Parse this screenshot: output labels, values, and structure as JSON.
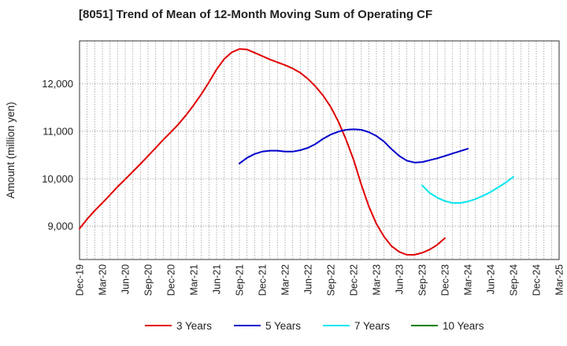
{
  "chart_data": {
    "type": "line",
    "title": "[8051]  Trend of Mean of 12-Month Moving Sum of Operating CF",
    "xlabel": "",
    "ylabel": "Amount (million yen)",
    "ylim": [
      8300,
      12900
    ],
    "yticks": [
      9000,
      10000,
      11000,
      12000
    ],
    "ytick_labels": [
      "9,000",
      "10,000",
      "11,000",
      "12,000"
    ],
    "x_tick_labels": [
      "Dec-19",
      "Mar-20",
      "Jun-20",
      "Sep-20",
      "Dec-20",
      "Mar-21",
      "Jun-21",
      "Sep-21",
      "Dec-21",
      "Mar-22",
      "Jun-22",
      "Sep-22",
      "Dec-22",
      "Mar-23",
      "Jun-23",
      "Sep-23",
      "Dec-23",
      "Mar-24",
      "Jun-24",
      "Sep-24",
      "Dec-24",
      "Mar-25"
    ],
    "x_tick_index": [
      0,
      3,
      6,
      9,
      12,
      15,
      18,
      21,
      24,
      27,
      30,
      33,
      36,
      39,
      42,
      45,
      48,
      51,
      54,
      57,
      60,
      63
    ],
    "x_range": [
      0,
      63
    ],
    "grid": true,
    "legend_position": "bottom",
    "series": [
      {
        "name": "3 Years",
        "color": "#e00000",
        "x_start": 0,
        "values": [
          8950,
          9150,
          9330,
          9490,
          9660,
          9830,
          9990,
          10150,
          10310,
          10480,
          10650,
          10820,
          10980,
          11150,
          11340,
          11550,
          11780,
          12030,
          12300,
          12520,
          12660,
          12730,
          12720,
          12650,
          12580,
          12510,
          12450,
          12390,
          12320,
          12230,
          12100,
          11940,
          11750,
          11510,
          11200,
          10830,
          10400,
          9880,
          9420,
          9050,
          8780,
          8580,
          8460,
          8400,
          8400,
          8440,
          8510,
          8610,
          8750
        ]
      },
      {
        "name": "5 Years",
        "color": "#0000cc",
        "x_start": 21,
        "values": [
          10320,
          10440,
          10520,
          10570,
          10590,
          10590,
          10570,
          10570,
          10600,
          10650,
          10730,
          10840,
          10930,
          10990,
          11030,
          11040,
          11030,
          10980,
          10900,
          10780,
          10620,
          10480,
          10380,
          10340,
          10350,
          10390,
          10430,
          10480,
          10530,
          10580,
          10630
        ]
      },
      {
        "name": "7 Years",
        "color": "#00e5ee",
        "x_start": 45,
        "values": [
          9860,
          9700,
          9600,
          9530,
          9490,
          9490,
          9520,
          9570,
          9640,
          9720,
          9820,
          9920,
          10040
        ]
      },
      {
        "name": "10 Years",
        "color": "#008000",
        "x_start": 0,
        "values": []
      }
    ]
  }
}
